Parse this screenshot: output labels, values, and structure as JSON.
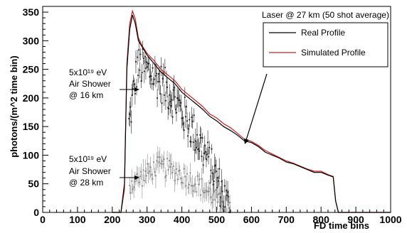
{
  "chart_data": {
    "type": "line",
    "xlabel": "FD  time  bins",
    "ylabel": "photons/(m^2  time  bin)",
    "xlim": [
      0,
      1000
    ],
    "ylim": [
      0,
      360
    ],
    "xticks": [
      0,
      100,
      200,
      300,
      400,
      500,
      600,
      700,
      800,
      900,
      1000
    ],
    "yticks": [
      0,
      50,
      100,
      150,
      200,
      250,
      300,
      350
    ],
    "grid": false,
    "legend": {
      "title": "Laser @ 27 km (50 shot average)",
      "placement": "top-right",
      "entries": [
        {
          "name": "Real Profile",
          "color": "#000000"
        },
        {
          "name": "Simulated Profile",
          "color": "#cc2020"
        }
      ]
    },
    "series": [
      {
        "name": "Real Profile",
        "color": "#000000",
        "x": [
          200,
          225,
          235,
          242,
          250,
          258,
          266,
          275,
          285,
          300,
          320,
          340,
          360,
          380,
          400,
          420,
          440,
          460,
          480,
          500,
          520,
          540,
          560,
          580,
          600,
          620,
          640,
          660,
          680,
          700,
          720,
          740,
          760,
          780,
          800,
          820,
          835,
          842,
          850,
          900,
          1000
        ],
        "y": [
          0,
          0,
          50,
          250,
          320,
          345,
          330,
          300,
          290,
          275,
          260,
          245,
          235,
          225,
          210,
          200,
          190,
          180,
          168,
          160,
          150,
          143,
          135,
          125,
          122,
          115,
          105,
          100,
          95,
          88,
          85,
          80,
          75,
          70,
          70,
          65,
          62,
          20,
          0,
          0,
          0
        ]
      },
      {
        "name": "Simulated Profile",
        "color": "#cc2020",
        "x": [
          200,
          225,
          235,
          242,
          250,
          258,
          266,
          275,
          285,
          300,
          320,
          340,
          360,
          380,
          400,
          420,
          440,
          460,
          480,
          500,
          520,
          540,
          560,
          580,
          600,
          620,
          640,
          660,
          680,
          700,
          720,
          740,
          760,
          780,
          800,
          820,
          835,
          842,
          850,
          900,
          1000
        ],
        "y": [
          0,
          0,
          40,
          260,
          330,
          352,
          338,
          305,
          292,
          278,
          265,
          250,
          240,
          230,
          215,
          205,
          195,
          185,
          172,
          165,
          155,
          148,
          138,
          128,
          124,
          117,
          108,
          102,
          96,
          90,
          86,
          81,
          76,
          72,
          72,
          66,
          63,
          20,
          0,
          0,
          0
        ]
      }
    ],
    "annotations": [
      {
        "lines": [
          "5x10¹⁹ eV",
          "Air Shower",
          "@ 16 km"
        ]
      },
      {
        "lines": [
          "5x10¹⁹ eV",
          "Air Shower",
          "@ 28 km"
        ]
      }
    ]
  }
}
